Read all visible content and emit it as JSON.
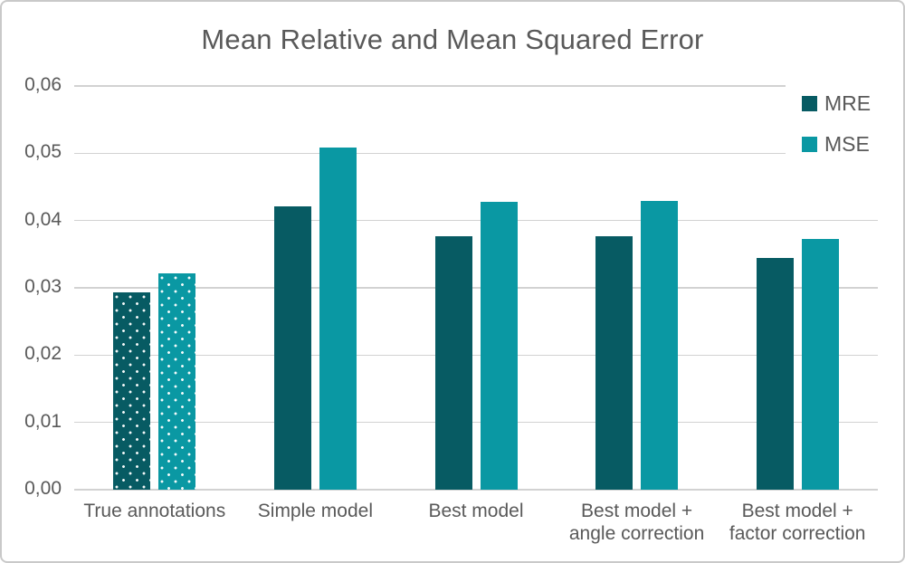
{
  "window": {
    "background": "#ffffff",
    "border_color": "#c9c9c9"
  },
  "chart_data": {
    "type": "bar",
    "title": "Mean Relative and Mean Squared Error",
    "categories": [
      "True annotations",
      "Simple model",
      "Best model",
      "Best model +\nangle correction",
      "Best model +\nfactor correction"
    ],
    "series": [
      {
        "name": "MRE",
        "color": "#075b63",
        "values": [
          0.0293,
          0.0421,
          0.0377,
          0.0377,
          0.0345
        ]
      },
      {
        "name": "MSE",
        "color": "#0a98a3",
        "values": [
          0.0321,
          0.0509,
          0.0428,
          0.0429,
          0.0372
        ]
      }
    ],
    "patterned_category": "True annotations",
    "patterned_category_index": 0,
    "pattern_style": "white-dots",
    "xlabel": "",
    "ylabel": "",
    "ylim": [
      0,
      0.06
    ],
    "y_tick_labels": [
      "0,00",
      "0,01",
      "0,02",
      "0,03",
      "0,04",
      "0,05",
      "0,06"
    ],
    "decimal_separator": ",",
    "grid": true,
    "gridline_color": "#d2d2d2",
    "text_color": "#595959",
    "legend_position": "top-right"
  }
}
